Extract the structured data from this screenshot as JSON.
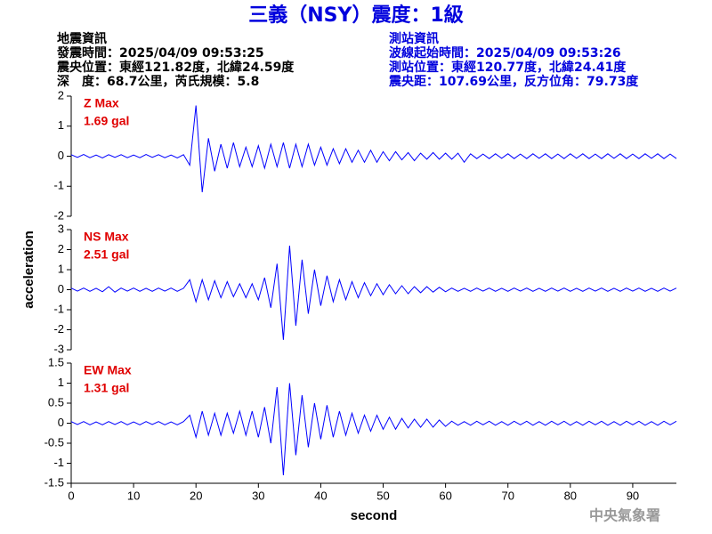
{
  "title": "三義（NSY）震度：1級",
  "event_info": [
    "地震資訊",
    "發震時間：2025/04/09 09:53:25",
    "震央位置：東經121.82度，北緯24.59度",
    "深　度：68.7公里，芮氏規模：5.8"
  ],
  "station_info": [
    "測站資訊",
    "波線起始時間：2025/04/09 09:53:26",
    "測站位置：東經120.77度，北緯24.41度",
    "震央距：107.69公里，反方位角：79.73度"
  ],
  "ylabel": "acceleration",
  "footer": "中央氣象署",
  "chart_data": [
    {
      "type": "line",
      "annotations": [
        "Z Max",
        "1.69 gal"
      ],
      "color": "#0000ff",
      "xlim": [
        0,
        97
      ],
      "ylim": [
        -2,
        2
      ],
      "yticks": [
        -2,
        -1,
        0,
        1,
        2
      ],
      "x": [
        0,
        1,
        2,
        3,
        4,
        5,
        6,
        7,
        8,
        9,
        10,
        11,
        12,
        13,
        14,
        15,
        16,
        17,
        18,
        19,
        20,
        21,
        22,
        23,
        24,
        25,
        26,
        27,
        28,
        29,
        30,
        31,
        32,
        33,
        34,
        35,
        36,
        37,
        38,
        39,
        40,
        41,
        42,
        43,
        44,
        45,
        46,
        47,
        48,
        49,
        50,
        51,
        52,
        53,
        54,
        55,
        56,
        57,
        58,
        59,
        60,
        61,
        62,
        63,
        64,
        65,
        66,
        67,
        68,
        69,
        70,
        71,
        72,
        73,
        74,
        75,
        76,
        77,
        78,
        79,
        80,
        81,
        82,
        83,
        84,
        85,
        86,
        87,
        88,
        89,
        90,
        91,
        92,
        93,
        94,
        95,
        96,
        97
      ],
      "values": [
        0.05,
        -0.04,
        0.06,
        -0.05,
        0.04,
        -0.06,
        0.05,
        -0.04,
        0.05,
        -0.05,
        0.04,
        -0.05,
        0.06,
        -0.04,
        0.05,
        -0.05,
        0.04,
        -0.06,
        0.05,
        -0.3,
        1.69,
        -1.2,
        0.6,
        -0.5,
        0.4,
        -0.4,
        0.45,
        -0.35,
        0.3,
        -0.35,
        0.35,
        -0.4,
        0.4,
        -0.35,
        0.45,
        -0.4,
        0.4,
        -0.35,
        0.4,
        -0.3,
        0.3,
        -0.3,
        0.25,
        -0.25,
        0.25,
        -0.2,
        0.2,
        -0.2,
        0.2,
        -0.2,
        0.15,
        -0.15,
        0.15,
        -0.12,
        0.12,
        -0.15,
        0.1,
        -0.1,
        0.12,
        -0.1,
        0.1,
        -0.1,
        0.1,
        -0.2,
        0.08,
        -0.08,
        0.07,
        -0.08,
        0.08,
        -0.07,
        0.08,
        -0.08,
        0.07,
        -0.08,
        0.08,
        -0.07,
        0.08,
        -0.08,
        0.07,
        -0.08,
        0.08,
        -0.07,
        0.08,
        -0.08,
        0.07,
        -0.08,
        0.08,
        -0.07,
        0.08,
        -0.08,
        0.07,
        -0.08,
        0.08,
        -0.07,
        0.08,
        -0.08,
        0.07,
        -0.08
      ]
    },
    {
      "type": "line",
      "annotations": [
        "NS Max",
        "2.51 gal"
      ],
      "color": "#0000ff",
      "xlim": [
        0,
        97
      ],
      "ylim": [
        -3,
        3
      ],
      "yticks": [
        -3,
        -2,
        -1,
        0,
        1,
        2,
        3
      ],
      "x": [
        0,
        1,
        2,
        3,
        4,
        5,
        6,
        7,
        8,
        9,
        10,
        11,
        12,
        13,
        14,
        15,
        16,
        17,
        18,
        19,
        20,
        21,
        22,
        23,
        24,
        25,
        26,
        27,
        28,
        29,
        30,
        31,
        32,
        33,
        34,
        35,
        36,
        37,
        38,
        39,
        40,
        41,
        42,
        43,
        44,
        45,
        46,
        47,
        48,
        49,
        50,
        51,
        52,
        53,
        54,
        55,
        56,
        57,
        58,
        59,
        60,
        61,
        62,
        63,
        64,
        65,
        66,
        67,
        68,
        69,
        70,
        71,
        72,
        73,
        74,
        75,
        76,
        77,
        78,
        79,
        80,
        81,
        82,
        83,
        84,
        85,
        86,
        87,
        88,
        89,
        90,
        91,
        92,
        93,
        94,
        95,
        96,
        97
      ],
      "values": [
        0.08,
        -0.07,
        0.08,
        -0.08,
        0.07,
        -0.1,
        0.15,
        -0.12,
        0.08,
        -0.07,
        0.08,
        -0.08,
        0.07,
        -0.08,
        0.08,
        -0.07,
        0.08,
        -0.08,
        0.07,
        0.5,
        -0.6,
        0.5,
        -0.5,
        0.45,
        -0.4,
        0.4,
        -0.35,
        0.3,
        -0.4,
        0.3,
        -0.5,
        0.6,
        -0.9,
        1.3,
        -2.5,
        2.2,
        -1.8,
        1.5,
        -1.2,
        1.0,
        -0.8,
        0.7,
        -0.6,
        0.5,
        -0.5,
        0.4,
        -0.4,
        0.35,
        -0.3,
        0.3,
        -0.25,
        0.25,
        -0.2,
        0.2,
        -0.2,
        0.15,
        -0.15,
        0.15,
        -0.12,
        0.12,
        -0.1,
        0.08,
        -0.08,
        0.07,
        -0.08,
        0.08,
        -0.07,
        0.08,
        -0.08,
        0.07,
        -0.08,
        0.08,
        -0.07,
        0.08,
        -0.08,
        0.07,
        -0.08,
        0.08,
        -0.07,
        0.08,
        -0.08,
        0.07,
        -0.08,
        0.08,
        -0.07,
        0.08,
        -0.08,
        0.07,
        -0.08,
        0.08,
        -0.07,
        0.08,
        -0.08,
        0.07,
        -0.08,
        0.08,
        -0.07,
        0.08
      ]
    },
    {
      "type": "line",
      "annotations": [
        "EW Max",
        "1.31 gal"
      ],
      "color": "#0000ff",
      "xlabel": "second",
      "xlim": [
        0,
        97
      ],
      "ylim": [
        -1.5,
        1.5
      ],
      "yticks": [
        -1.5,
        -1,
        -0.5,
        0,
        0.5,
        1,
        1.5
      ],
      "xticks": [
        0,
        10,
        20,
        30,
        40,
        50,
        60,
        70,
        80,
        90
      ],
      "x": [
        0,
        1,
        2,
        3,
        4,
        5,
        6,
        7,
        8,
        9,
        10,
        11,
        12,
        13,
        14,
        15,
        16,
        17,
        18,
        19,
        20,
        21,
        22,
        23,
        24,
        25,
        26,
        27,
        28,
        29,
        30,
        31,
        32,
        33,
        34,
        35,
        36,
        37,
        38,
        39,
        40,
        41,
        42,
        43,
        44,
        45,
        46,
        47,
        48,
        49,
        50,
        51,
        52,
        53,
        54,
        55,
        56,
        57,
        58,
        59,
        60,
        61,
        62,
        63,
        64,
        65,
        66,
        67,
        68,
        69,
        70,
        71,
        72,
        73,
        74,
        75,
        76,
        77,
        78,
        79,
        80,
        81,
        82,
        83,
        84,
        85,
        86,
        87,
        88,
        89,
        90,
        91,
        92,
        93,
        94,
        95,
        96,
        97
      ],
      "values": [
        0.04,
        -0.03,
        0.04,
        -0.04,
        0.03,
        -0.04,
        0.04,
        -0.03,
        0.04,
        -0.04,
        0.03,
        -0.04,
        0.04,
        -0.03,
        0.04,
        -0.04,
        0.03,
        -0.04,
        0.04,
        0.2,
        -0.35,
        0.3,
        -0.3,
        0.25,
        -0.3,
        0.25,
        -0.25,
        0.3,
        -0.3,
        0.3,
        -0.35,
        0.4,
        -0.5,
        0.9,
        -1.3,
        1.0,
        -0.8,
        0.7,
        -0.6,
        0.5,
        -0.4,
        0.45,
        -0.35,
        0.3,
        -0.3,
        0.25,
        -0.25,
        0.2,
        -0.2,
        0.2,
        -0.15,
        0.15,
        -0.15,
        0.12,
        -0.12,
        0.1,
        -0.1,
        0.1,
        -0.1,
        0.08,
        -0.08,
        0.05,
        -0.05,
        0.04,
        -0.05,
        0.05,
        -0.04,
        0.05,
        -0.05,
        0.04,
        -0.05,
        0.05,
        -0.04,
        0.05,
        -0.05,
        0.04,
        -0.05,
        0.05,
        -0.04,
        0.05,
        -0.05,
        0.04,
        -0.05,
        0.05,
        -0.04,
        0.05,
        -0.05,
        0.04,
        -0.05,
        0.05,
        -0.04,
        0.05,
        -0.05,
        0.04,
        -0.05,
        0.05,
        -0.04,
        0.05
      ]
    }
  ]
}
